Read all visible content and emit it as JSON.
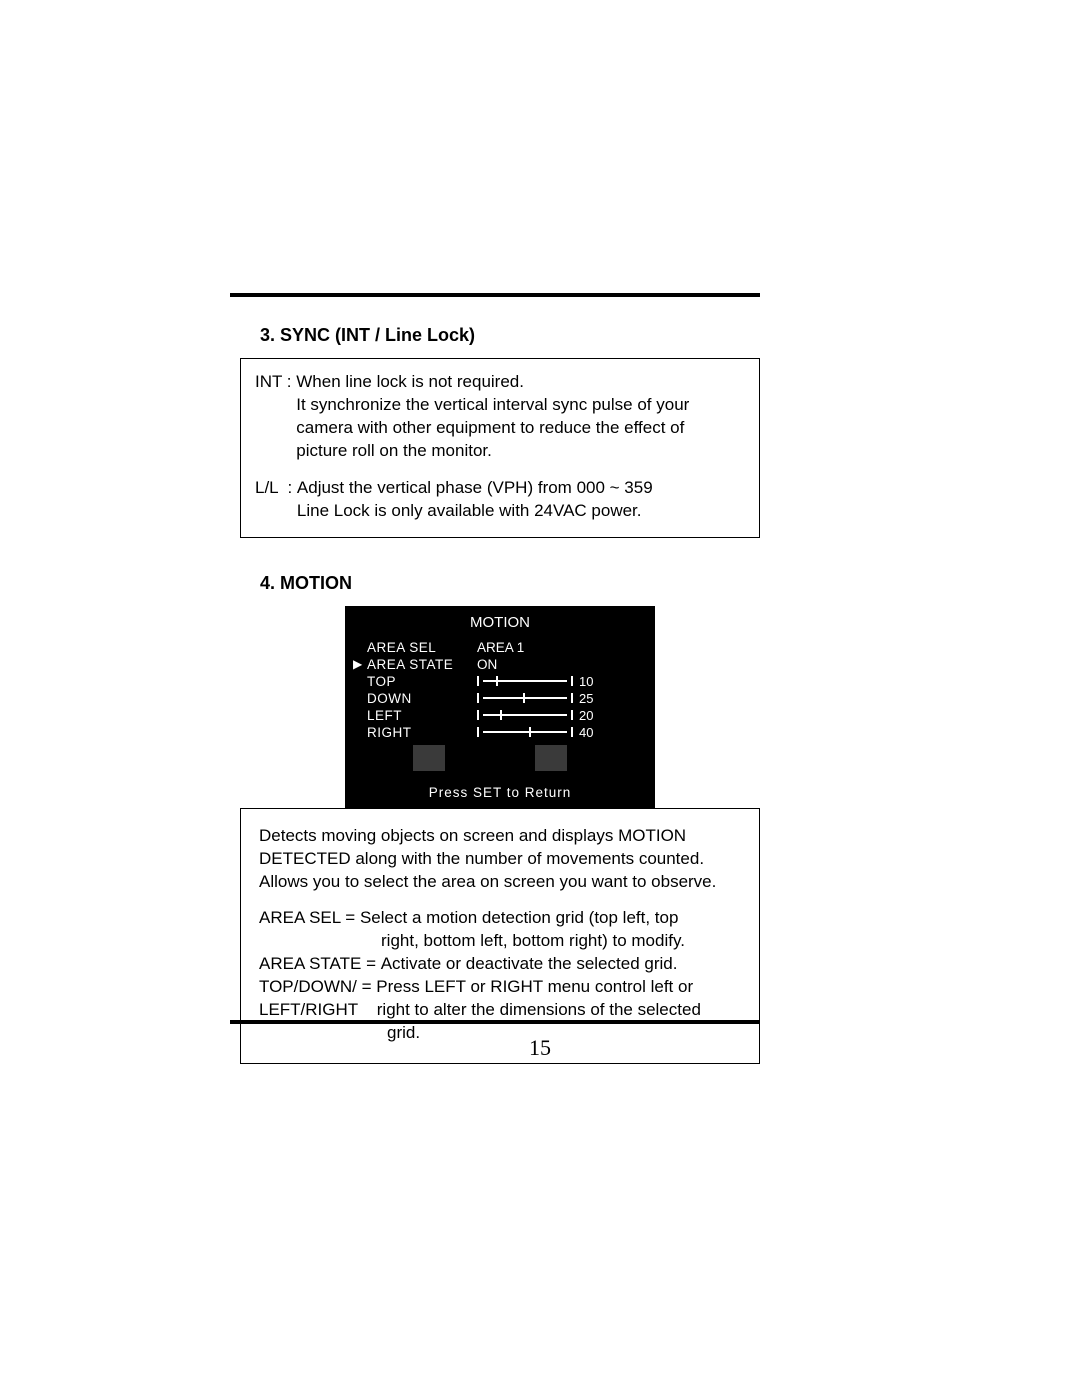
{
  "page": {
    "number": "15",
    "hr_color": "#000000",
    "background_color": "#ffffff",
    "text_color": "#000000"
  },
  "section3": {
    "title": "3. SYNC (INT / Line Lock)",
    "int_label": "INT : ",
    "int_line1": "When line lock is not required.",
    "int_line2": "It synchronize the vertical interval sync pulse of your",
    "int_line3": "camera with other equipment to reduce the effect of",
    "int_line4": "picture roll on the monitor.",
    "ll_label": "L/L  : ",
    "ll_line1": "Adjust the vertical phase (VPH) from 000 ~ 359",
    "ll_line2": "Line Lock is only  available with 24VAC power."
  },
  "section4": {
    "title": "4. MOTION",
    "osd": {
      "background_color": "#000000",
      "text_color": "#ffffff",
      "gray_square_color": "#3a3a3a",
      "title": "MOTION",
      "rows": [
        {
          "label": "AREA  SEL",
          "value": "AREA 1",
          "slider": null,
          "caret": false
        },
        {
          "label": "AREA  STATE",
          "value": "ON",
          "slider": null,
          "caret": true
        },
        {
          "label": "TOP",
          "value": "",
          "slider": {
            "pos": 15,
            "num": "10"
          },
          "caret": false
        },
        {
          "label": "DOWN",
          "value": "",
          "slider": {
            "pos": 48,
            "num": "25"
          },
          "caret": false
        },
        {
          "label": "LEFT",
          "value": "",
          "slider": {
            "pos": 20,
            "num": "20"
          },
          "caret": false
        },
        {
          "label": "RIGHT",
          "value": "",
          "slider": {
            "pos": 55,
            "num": "40"
          },
          "caret": false
        }
      ],
      "footer": "Press   SET   to   Return"
    },
    "desc_line1": "Detects moving objects on screen and displays MOTION",
    "desc_line2": "DETECTED along with the number of movements counted.",
    "desc_line3": "Allows you to select the area on screen you want to observe.",
    "areasel_label": "AREA SEL = ",
    "areasel_l1": "Select a motion detection grid (top left, top",
    "areasel_l2": "right, bottom left, bottom right) to modify.",
    "areastate_label": "AREA STATE = ",
    "areastate_l1": "Activate or deactivate the selected grid.",
    "tdlr_label1": "TOP/DOWN/ = ",
    "tdlr_l1": "Press LEFT or RIGHT menu control left or",
    "tdlr_label2": "LEFT/RIGHT    ",
    "tdlr_l2": "right to alter the dimensions of the selected",
    "tdlr_l3": "grid."
  }
}
